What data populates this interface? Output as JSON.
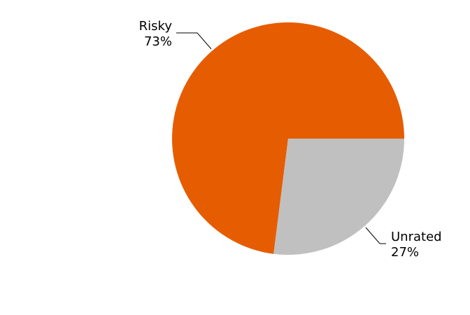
{
  "chart_data": {
    "type": "pie",
    "slices": [
      {
        "label": "Risky",
        "value": 73,
        "display": "73%",
        "color": "#E65C00"
      },
      {
        "label": "Unrated",
        "value": 27,
        "display": "27%",
        "color": "#C0C0C0"
      }
    ],
    "legend": "none",
    "labels": "outside-with-leader-lines"
  }
}
